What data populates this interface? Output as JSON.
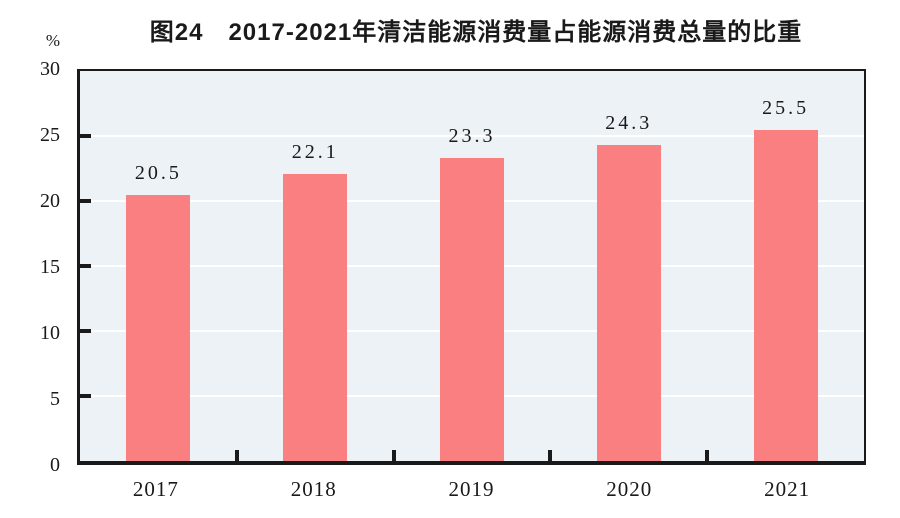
{
  "title": "图24　2017-2021年清洁能源消费量占能源消费总量的比重",
  "chart_data": {
    "type": "bar",
    "title": "图24　2017-2021年清洁能源消费量占能源消费总量的比重",
    "categories": [
      "2017",
      "2018",
      "2019",
      "2020",
      "2021"
    ],
    "values": [
      20.5,
      22.1,
      23.3,
      24.3,
      25.5
    ],
    "value_labels": [
      "20.5",
      "22.1",
      "23.3",
      "24.3",
      "25.5"
    ],
    "unit_label": "%",
    "xlabel": "",
    "ylabel": "%",
    "ylim": [
      0,
      30
    ],
    "yticks": [
      0,
      5,
      10,
      15,
      20,
      25,
      30
    ],
    "grid": true,
    "legend": "none",
    "colors": {
      "bar": "#fa7f80",
      "plot_background": "#edf2f6",
      "gridline": "#ffffff",
      "axis": "#1a1a1a",
      "text": "#1a1a1a",
      "page_background": "#ffffff"
    }
  }
}
